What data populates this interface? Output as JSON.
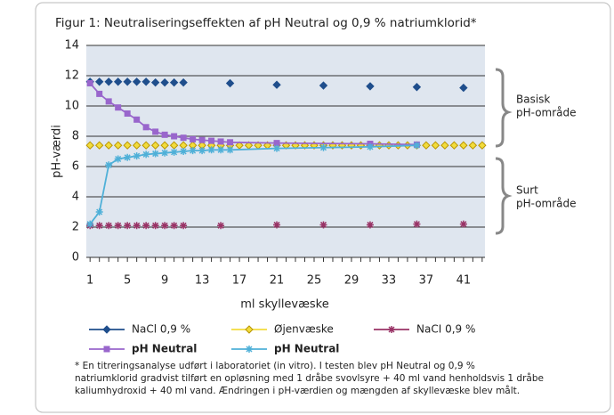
{
  "chart_data": {
    "type": "line",
    "title": "Figur 1: Neutraliseringseffekten af pH Neutral og 0,9 % natriumklorid*",
    "xlabel": "ml skyllevæske",
    "ylabel": "pH-værdi",
    "xlim": [
      0.6,
      43.3
    ],
    "ylim": [
      0,
      14
    ],
    "xticks": [
      1,
      5,
      9,
      13,
      17,
      21,
      25,
      29,
      33,
      37,
      41
    ],
    "yticks": [
      0,
      2,
      4,
      6,
      8,
      10,
      12,
      14
    ],
    "grid": true,
    "series": [
      {
        "name": "NaCl 0,9 %",
        "color": "#1f4e8c",
        "marker": "diamond",
        "line": false,
        "x": [
          1,
          2,
          3,
          4,
          5,
          6,
          7,
          8,
          9,
          10,
          11,
          16,
          21,
          26,
          31,
          36,
          41
        ],
        "values": [
          11.6,
          11.6,
          11.6,
          11.6,
          11.6,
          11.6,
          11.6,
          11.55,
          11.55,
          11.55,
          11.55,
          11.5,
          11.4,
          11.35,
          11.3,
          11.25,
          11.2
        ]
      },
      {
        "name": "Øjenvæske",
        "color": "#f2dc3c",
        "marker": "diamond",
        "line": false,
        "x": [
          1,
          2,
          3,
          4,
          5,
          6,
          7,
          8,
          9,
          10,
          11,
          12,
          13,
          14,
          15,
          16,
          17,
          18,
          19,
          20,
          21,
          22,
          23,
          24,
          25,
          26,
          27,
          28,
          29,
          30,
          31,
          32,
          33,
          34,
          35,
          36,
          37,
          38,
          39,
          40,
          41,
          42,
          43
        ],
        "values": [
          7.4,
          7.4,
          7.4,
          7.4,
          7.4,
          7.4,
          7.4,
          7.4,
          7.4,
          7.4,
          7.4,
          7.4,
          7.4,
          7.4,
          7.4,
          7.4,
          7.4,
          7.4,
          7.4,
          7.4,
          7.4,
          7.4,
          7.4,
          7.4,
          7.4,
          7.4,
          7.4,
          7.4,
          7.4,
          7.4,
          7.4,
          7.4,
          7.4,
          7.4,
          7.4,
          7.4,
          7.4,
          7.4,
          7.4,
          7.4,
          7.4,
          7.4,
          7.4
        ]
      },
      {
        "name": "NaCI 0,9 %",
        "color": "#993366",
        "marker": "asterisk",
        "line": false,
        "x": [
          1,
          2,
          3,
          4,
          5,
          6,
          7,
          8,
          9,
          10,
          11,
          15,
          21,
          26,
          31,
          36,
          41
        ],
        "values": [
          2.1,
          2.1,
          2.1,
          2.1,
          2.1,
          2.1,
          2.1,
          2.1,
          2.1,
          2.1,
          2.1,
          2.1,
          2.15,
          2.15,
          2.15,
          2.2,
          2.2
        ]
      },
      {
        "name": "pH Neutral",
        "color": "#9966cc",
        "marker": "square",
        "line": true,
        "x": [
          1,
          2,
          3,
          4,
          5,
          6,
          7,
          8,
          9,
          10,
          11,
          12,
          13,
          14,
          15,
          16,
          21,
          31,
          36
        ],
        "values": [
          11.5,
          10.8,
          10.3,
          9.9,
          9.5,
          9.1,
          8.6,
          8.3,
          8.1,
          8.0,
          7.9,
          7.8,
          7.75,
          7.7,
          7.65,
          7.6,
          7.55,
          7.5,
          7.45
        ]
      },
      {
        "name": "pH Neutral",
        "color": "#4fb0d8",
        "marker": "asterisk",
        "line": true,
        "x": [
          1,
          2,
          3,
          4,
          5,
          6,
          7,
          8,
          9,
          10,
          11,
          12,
          13,
          14,
          15,
          16,
          21,
          26,
          31,
          36
        ],
        "values": [
          2.2,
          3.0,
          6.1,
          6.5,
          6.6,
          6.7,
          6.8,
          6.85,
          6.9,
          6.95,
          7.0,
          7.05,
          7.05,
          7.1,
          7.1,
          7.1,
          7.2,
          7.25,
          7.3,
          7.4
        ]
      }
    ],
    "annotations": [
      [
        "Basisk",
        "pH-område"
      ],
      [
        "Surt",
        "pH-område"
      ]
    ],
    "footnote": [
      "* En titreringsanalyse udført i laboratoriet (in vitro). I testen blev pH Neutral og 0,9 %",
      "natriumklorid gradvist tilført en opløsning med 1 dråbe svovlsyre + 40 ml vand henholdsvis 1 dråbe",
      "kaliumhydroxid + 40 ml vand. Ændringen i pH-værdien og mængden af skyllevæske blev målt."
    ]
  }
}
